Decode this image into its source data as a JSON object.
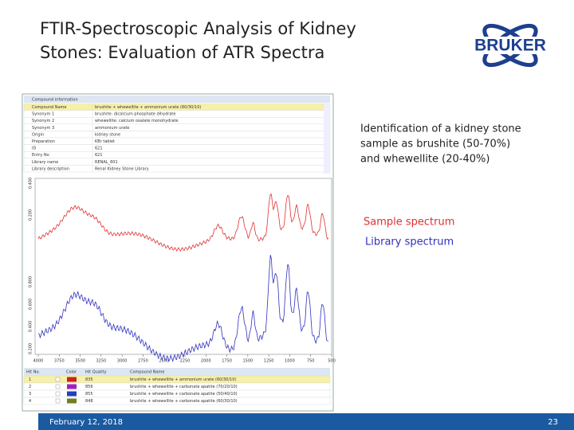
{
  "header": {
    "title_lines": [
      "FTIR-Spectroscopic Analysis of Kidney",
      "Stones: Evaluation of ATR Spectra"
    ],
    "logo": "BRUKER"
  },
  "compound_info": {
    "heading": "Compound information",
    "rows": [
      [
        "Compound Name",
        "brushite + whewellite + ammonium urate (60/30/10)"
      ],
      [
        "Synonym 1",
        "brushite: dicalcium phosphate dihydrate"
      ],
      [
        "Synonym 2",
        "whewellite: calcium oxalate monohydrate"
      ],
      [
        "Synonym 3",
        "ammonium urate"
      ],
      [
        "Origin",
        "kidney stone"
      ],
      [
        "Preparation",
        "KBr tablet"
      ],
      [
        "ID",
        "621"
      ],
      [
        "Entry No",
        "621"
      ],
      [
        "Library name",
        "RENAL_601"
      ],
      [
        "Library description",
        "Renal Kidney Stone Library"
      ]
    ]
  },
  "spectrum": {
    "xticks": [
      "4000",
      "3750",
      "3500",
      "3250",
      "3000",
      "2750",
      "2500",
      "2250",
      "2000",
      "1750",
      "1500",
      "1250",
      "1000",
      "750",
      "500"
    ],
    "yticks_top": [
      "0.200",
      "0.400"
    ],
    "yticks_bottom": [
      "0.200",
      "0.400",
      "0.600",
      "0.800"
    ]
  },
  "hits": {
    "headers": [
      "Hit No.",
      "",
      "Color",
      "Hit Quality",
      "Compound Name"
    ],
    "rows": [
      {
        "no": "1",
        "quality": "835",
        "name": "brushite + whewellite + ammonium urate (60/30/10)",
        "color": "#d02020"
      },
      {
        "no": "2",
        "quality": "856",
        "name": "brushite + whewellite + carbonate apatite (70/20/10)",
        "color": "#a020c0"
      },
      {
        "no": "3",
        "quality": "855",
        "name": "brushite + whewellite + carbonate apatite (50/40/10)",
        "color": "#2040c0"
      },
      {
        "no": "4",
        "quality": "848",
        "name": "brushite + whewellite + carbonate apatite (60/30/10)",
        "color": "#708020"
      }
    ]
  },
  "description": [
    "Identification of a kidney stone",
    "sample as brushite (50-70%)",
    "and whewellite (20-40%)"
  ],
  "legend": {
    "sample": "Sample spectrum",
    "library": "Library spectrum"
  },
  "footer": {
    "date": "February 12, 2018",
    "page": "23"
  }
}
